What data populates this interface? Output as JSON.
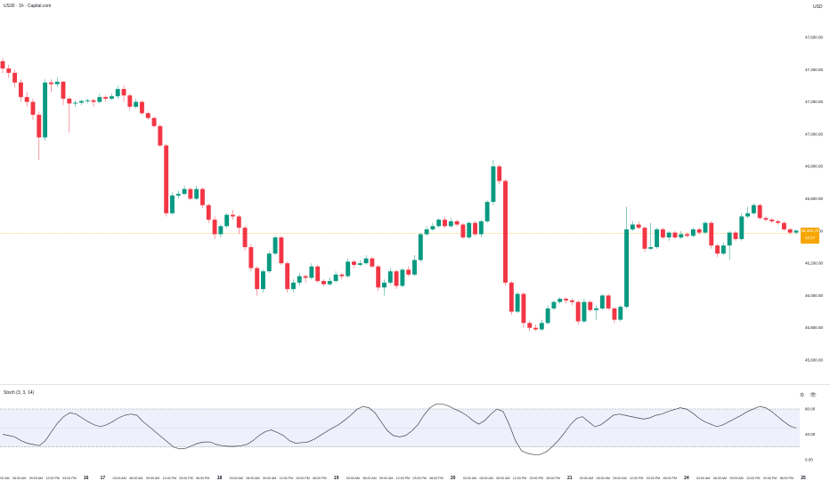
{
  "header": {
    "title": "US30 · 1h · Capital.com",
    "currency": "USD",
    "indicator_title": "Stoch (3, 3, 14)",
    "indicator_icons": "⚙ 👁"
  },
  "last_price": {
    "price": "46,391.70",
    "countdown": "12:17"
  },
  "colors": {
    "up": "#089981",
    "down": "#f23645",
    "stoch_line": "#434651",
    "band_fill": "#eef1fb",
    "band_line": "#787b86",
    "last_price_bg": "#f7a600"
  },
  "chart_data": [
    {
      "type": "candlestick",
      "symbol": "US30",
      "interval": "1h",
      "y_axis_ticks": [
        "47,600.00",
        "47,400.00",
        "47,200.00",
        "47,000.00",
        "46,800.00",
        "46,600.00",
        "46,400.00",
        "46,200.00",
        "46,000.00",
        "45,800.00",
        "45,600.00"
      ],
      "x_axis_ticks": [
        "12:00 AM",
        "06:00 AM",
        "09:00 AM",
        "12:00 PM",
        "03:00 PM",
        "16",
        "17",
        "03:00 AM",
        "06:00 AM",
        "09:00 AM",
        "12:00 PM",
        "03:00 PM",
        "06:00 PM",
        "18",
        "03:00 AM",
        "06:00 AM",
        "09:00 AM",
        "12:00 PM",
        "03:00 PM",
        "06:00 PM",
        "19",
        "03:00 AM",
        "06:00 AM",
        "09:00 AM",
        "12:00 PM",
        "03:00 PM",
        "06:00 PM",
        "20",
        "03:00 AM",
        "06:00 AM",
        "09:00 AM",
        "12:00 PM",
        "03:00 PM",
        "06:00 PM",
        "21",
        "03:00 AM",
        "06:00 AM",
        "09:00 AM",
        "12:00 PM",
        "03:00 PM",
        "06:00 PM",
        "24",
        "03:00 AM",
        "06:00 AM",
        "09:00 AM",
        "12:00 PM",
        "03:00 PM",
        "06:00 PM",
        "25"
      ],
      "ylim": [
        45500,
        47700
      ],
      "candles": [
        [
          47452,
          47407,
          47470,
          47380
        ],
        [
          47407,
          47380,
          47430,
          47350
        ],
        [
          47380,
          47320,
          47400,
          47290
        ],
        [
          47320,
          47230,
          47340,
          47200
        ],
        [
          47230,
          47200,
          47260,
          47170
        ],
        [
          47200,
          47120,
          47220,
          47090
        ],
        [
          47120,
          46980,
          47140,
          46840
        ],
        [
          46980,
          47320,
          47340,
          46960
        ],
        [
          47320,
          47310,
          47340,
          47260
        ],
        [
          47310,
          47325,
          47350,
          47290
        ],
        [
          47325,
          47220,
          47330,
          47180
        ],
        [
          47220,
          47190,
          47230,
          47010
        ],
        [
          47190,
          47195,
          47210,
          47170
        ],
        [
          47195,
          47205,
          47215,
          47180
        ],
        [
          47205,
          47210,
          47220,
          47190
        ],
        [
          47210,
          47200,
          47220,
          47170
        ],
        [
          47200,
          47230,
          47250,
          47190
        ],
        [
          47230,
          47220,
          47240,
          47200
        ],
        [
          47220,
          47235,
          47250,
          47210
        ],
        [
          47235,
          47280,
          47300,
          47220
        ],
        [
          47280,
          47240,
          47300,
          47200
        ],
        [
          47240,
          47170,
          47250,
          47150
        ],
        [
          47170,
          47200,
          47220,
          47160
        ],
        [
          47200,
          47130,
          47210,
          47120
        ],
        [
          47130,
          47100,
          47140,
          47090
        ],
        [
          47100,
          47050,
          47110,
          47040
        ],
        [
          47050,
          46930,
          47060,
          46920
        ],
        [
          46930,
          46510,
          46940,
          46490
        ],
        [
          46510,
          46620,
          46640,
          46500
        ],
        [
          46620,
          46630,
          46650,
          46600
        ],
        [
          46630,
          46660,
          46680,
          46620
        ],
        [
          46660,
          46600,
          46670,
          46590
        ],
        [
          46600,
          46660,
          46680,
          46590
        ],
        [
          46660,
          46560,
          46670,
          46540
        ],
        [
          46560,
          46470,
          46570,
          46450
        ],
        [
          46470,
          46380,
          46490,
          46350
        ],
        [
          46380,
          46430,
          46440,
          46360
        ],
        [
          46430,
          46500,
          46510,
          46420
        ],
        [
          46500,
          46490,
          46530,
          46470
        ],
        [
          46490,
          46420,
          46500,
          46380
        ],
        [
          46420,
          46300,
          46430,
          46280
        ],
        [
          46300,
          46170,
          46320,
          46150
        ],
        [
          46170,
          46040,
          46180,
          46000
        ],
        [
          46040,
          46150,
          46160,
          46020
        ],
        [
          46150,
          46260,
          46270,
          46140
        ],
        [
          46260,
          46360,
          46370,
          46250
        ],
        [
          46360,
          46200,
          46370,
          46190
        ],
        [
          46200,
          46040,
          46210,
          46020
        ],
        [
          46040,
          46080,
          46100,
          46020
        ],
        [
          46080,
          46120,
          46140,
          46060
        ],
        [
          46120,
          46110,
          46130,
          46080
        ],
        [
          46110,
          46180,
          46200,
          46100
        ],
        [
          46180,
          46090,
          46190,
          46080
        ],
        [
          46090,
          46070,
          46100,
          46060
        ],
        [
          46070,
          46090,
          46110,
          46060
        ],
        [
          46090,
          46130,
          46150,
          46080
        ],
        [
          46130,
          46120,
          46140,
          46100
        ],
        [
          46120,
          46210,
          46230,
          46110
        ],
        [
          46210,
          46190,
          46220,
          46170
        ],
        [
          46190,
          46200,
          46220,
          46180
        ],
        [
          46200,
          46230,
          46250,
          46190
        ],
        [
          46230,
          46180,
          46240,
          46170
        ],
        [
          46180,
          46050,
          46190,
          46030
        ],
        [
          46050,
          46080,
          46100,
          46000
        ],
        [
          46080,
          46150,
          46170,
          46070
        ],
        [
          46150,
          46060,
          46160,
          46040
        ],
        [
          46060,
          46160,
          46170,
          46050
        ],
        [
          46160,
          46130,
          46180,
          46120
        ],
        [
          46130,
          46220,
          46250,
          46120
        ],
        [
          46220,
          46380,
          46390,
          46210
        ],
        [
          46380,
          46410,
          46430,
          46370
        ],
        [
          46410,
          46430,
          46450,
          46400
        ],
        [
          46430,
          46470,
          46480,
          46420
        ],
        [
          46470,
          46430,
          46490,
          46420
        ],
        [
          46430,
          46460,
          46480,
          46420
        ],
        [
          46460,
          46440,
          46470,
          46430
        ],
        [
          46440,
          46360,
          46450,
          46350
        ],
        [
          46360,
          46450,
          46460,
          46350
        ],
        [
          46450,
          46380,
          46460,
          46370
        ],
        [
          46380,
          46460,
          46470,
          46360
        ],
        [
          46460,
          46580,
          46590,
          46450
        ],
        [
          46580,
          46800,
          46840,
          46560
        ],
        [
          46800,
          46710,
          46810,
          46690
        ],
        [
          46710,
          46080,
          46720,
          46060
        ],
        [
          46080,
          45900,
          46090,
          45880
        ],
        [
          45900,
          46010,
          46020,
          45890
        ],
        [
          46010,
          45830,
          46020,
          45800
        ],
        [
          45830,
          45800,
          45840,
          45780
        ],
        [
          45800,
          45790,
          45820,
          45780
        ],
        [
          45790,
          45830,
          45850,
          45780
        ],
        [
          45830,
          45920,
          45940,
          45820
        ],
        [
          45920,
          45960,
          45970,
          45910
        ],
        [
          45960,
          45980,
          45990,
          45950
        ],
        [
          45980,
          45970,
          45990,
          45950
        ],
        [
          45970,
          45960,
          45980,
          45940
        ],
        [
          45960,
          45840,
          45970,
          45820
        ],
        [
          45840,
          45960,
          45980,
          45830
        ],
        [
          45960,
          45910,
          45970,
          45900
        ],
        [
          45910,
          45920,
          45940,
          45850
        ],
        [
          45920,
          46000,
          46010,
          45910
        ],
        [
          46000,
          45920,
          46010,
          45910
        ],
        [
          45920,
          45850,
          45930,
          45830
        ],
        [
          45850,
          45930,
          45940,
          45840
        ],
        [
          45930,
          46410,
          46550,
          45920
        ],
        [
          46410,
          46440,
          46460,
          46400
        ],
        [
          46440,
          46420,
          46460,
          46410
        ],
        [
          46420,
          46290,
          46430,
          46270
        ],
        [
          46290,
          46300,
          46450,
          46280
        ],
        [
          46300,
          46410,
          46420,
          46290
        ],
        [
          46410,
          46360,
          46420,
          46350
        ],
        [
          46360,
          46390,
          46400,
          46340
        ],
        [
          46390,
          46360,
          46400,
          46350
        ],
        [
          46360,
          46380,
          46400,
          46350
        ],
        [
          46380,
          46370,
          46390,
          46360
        ],
        [
          46370,
          46410,
          46420,
          46360
        ],
        [
          46410,
          46390,
          46420,
          46380
        ],
        [
          46390,
          46450,
          46460,
          46380
        ],
        [
          46450,
          46310,
          46460,
          46290
        ],
        [
          46310,
          46260,
          46320,
          46240
        ],
        [
          46260,
          46310,
          46330,
          46250
        ],
        [
          46310,
          46390,
          46400,
          46220
        ],
        [
          46390,
          46350,
          46400,
          46340
        ],
        [
          46350,
          46490,
          46510,
          46340
        ],
        [
          46490,
          46510,
          46550,
          46480
        ],
        [
          46510,
          46560,
          46570,
          46500
        ],
        [
          46560,
          46480,
          46570,
          46470
        ],
        [
          46480,
          46470,
          46490,
          46460
        ],
        [
          46470,
          46460,
          46480,
          46450
        ],
        [
          46460,
          46450,
          46470,
          46440
        ],
        [
          46450,
          46410,
          46460,
          46400
        ],
        [
          46410,
          46390,
          46420,
          46380
        ],
        [
          46390,
          46402,
          46410,
          46380
        ]
      ]
    },
    {
      "type": "line",
      "name": "Stoch (3, 3, 14)",
      "y_axis_ticks": [
        "80.00",
        "40.00",
        "0.00"
      ],
      "upper_band": 80,
      "lower_band": 20,
      "ylim": [
        0,
        100
      ],
      "k": [
        40,
        38,
        36,
        30,
        26,
        24,
        22,
        30,
        44,
        58,
        68,
        74,
        72,
        66,
        60,
        55,
        52,
        55,
        60,
        66,
        70,
        72,
        70,
        60,
        52,
        44,
        36,
        28,
        20,
        17,
        18,
        22,
        26,
        28,
        28,
        24,
        22,
        21,
        21,
        22,
        24,
        30,
        38,
        44,
        47,
        43,
        38,
        30,
        26,
        27,
        28,
        32,
        38,
        44,
        50,
        55,
        62,
        70,
        79,
        84,
        82,
        74,
        60,
        46,
        38,
        36,
        38,
        45,
        55,
        70,
        82,
        88,
        88,
        85,
        80,
        76,
        70,
        62,
        56,
        62,
        72,
        80,
        76,
        55,
        30,
        14,
        10,
        8,
        8,
        12,
        20,
        30,
        42,
        55,
        65,
        68,
        60,
        52,
        55,
        62,
        70,
        72,
        70,
        68,
        66,
        64,
        66,
        70,
        72,
        76,
        79,
        82,
        80,
        74,
        66,
        60,
        56,
        52,
        55,
        60,
        65,
        70,
        76,
        80,
        84,
        82,
        76,
        68,
        60,
        53,
        50
      ]
    }
  ]
}
